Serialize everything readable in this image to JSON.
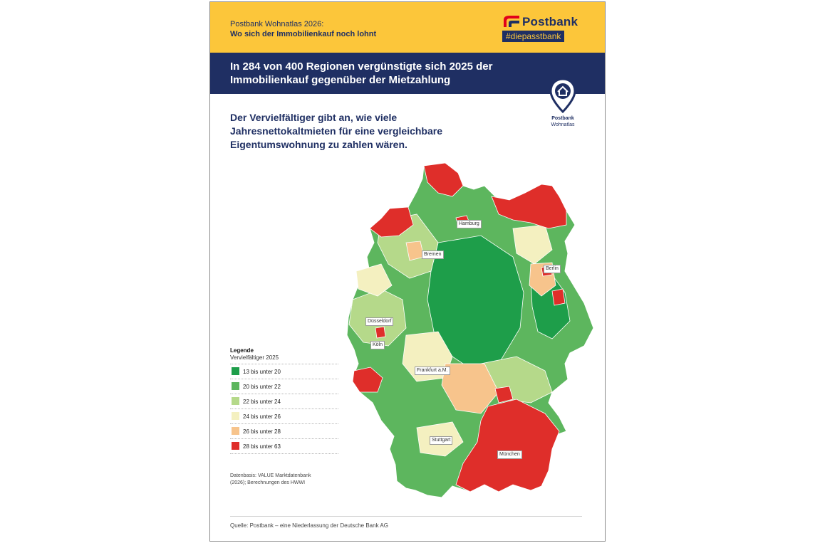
{
  "header": {
    "kicker": "Postbank Wohnatlas 2026:",
    "subtitle": "Wo sich der Immobilienkauf noch lohnt",
    "logo_name": "Postbank",
    "logo_tag": "#diepasstbank"
  },
  "headline": "In 284 von 400 Regionen vergünstigte sich 2025 der Immobilienkauf gegenüber der Mietzahlung",
  "description": "Der Vervielfältiger gibt an, wie viele Jahresnettokaltmieten für eine vergleichbare Eigentumswohnung zu zahlen wären.",
  "badge": {
    "line1": "Postbank",
    "line2": "Wohnatlas"
  },
  "legend": {
    "title": "Legende",
    "subtitle": "Vervielfältiger 2025",
    "items": [
      {
        "label": "13 bis unter 20",
        "color": "#1e9e4a"
      },
      {
        "label": "20 bis unter 22",
        "color": "#5db65e"
      },
      {
        "label": "22 bis unter 24",
        "color": "#b5d98a"
      },
      {
        "label": "24 bis unter 26",
        "color": "#f4f0c0"
      },
      {
        "label": "26 bis unter 28",
        "color": "#f7c48c"
      },
      {
        "label": "28 bis unter 63",
        "color": "#df2e2a"
      }
    ]
  },
  "cities": [
    "Hamburg",
    "Bremen",
    "Berlin",
    "Düsseldorf",
    "Köln",
    "Frankfurt a.M.",
    "Stuttgart",
    "München"
  ],
  "data_basis": "Datenbasis: VALUE Marktdatenbank (2026); Berechnungen des HWWI",
  "source": "Quelle: Postbank – eine Niederlassung der Deutsche Bank AG",
  "colors": {
    "brand_yellow": "#fcc63a",
    "brand_navy": "#1f2f63"
  }
}
